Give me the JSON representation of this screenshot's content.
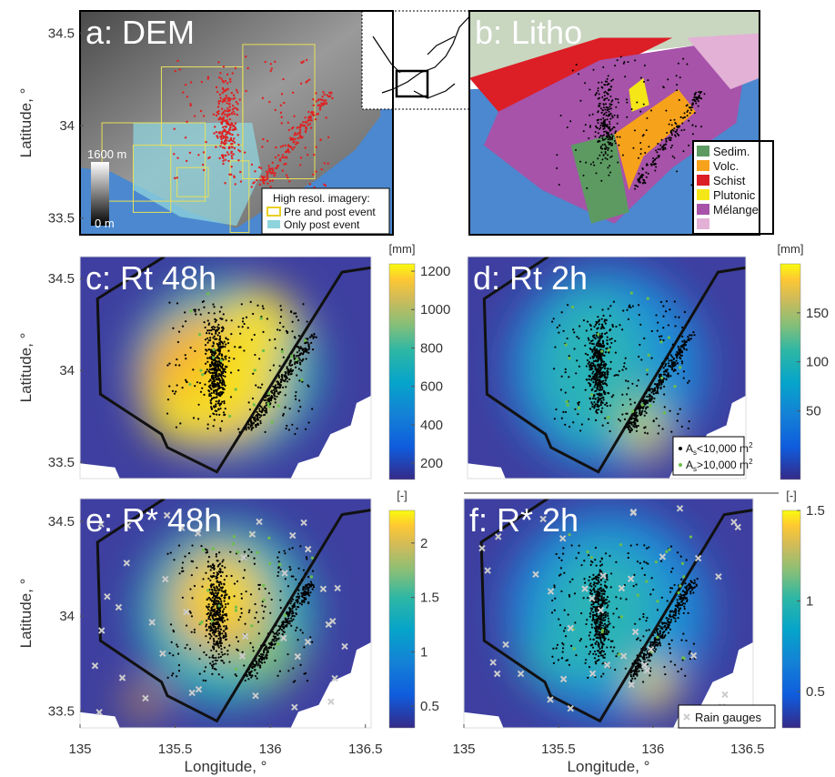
{
  "figure": {
    "y_label": "Latitude, °",
    "x_label": "Longitude, °",
    "yticks": [
      33.5,
      34,
      34.5
    ],
    "ylim": [
      33.41,
      34.62
    ],
    "xticks": [
      135,
      135.5,
      136,
      136.5
    ],
    "xlim": [
      135,
      136.53
    ]
  },
  "panels": [
    {
      "label": "a: DEM",
      "colorbar": {
        "top": "1600 m",
        "bottom": "0 m"
      },
      "legend": {
        "title": "High resol. imagery:",
        "items": [
          "Pre and post event",
          "Only post event"
        ]
      }
    },
    {
      "label": "b: Litho",
      "legend": {
        "items": [
          "Sedim.",
          "Volc.",
          "Schist",
          "Plutonic",
          "Mélange"
        ]
      }
    },
    {
      "label": "c: Rt 48h",
      "colorbar": {
        "unit": "[mm]",
        "lim": [
          115,
          1238
        ],
        "ticks": [
          200,
          400,
          600,
          800,
          1000,
          1200
        ]
      }
    },
    {
      "label": "d: Rt 2h",
      "colorbar": {
        "unit": "[mm]",
        "lim": [
          -20,
          200
        ],
        "ticks": [
          50,
          100,
          150
        ]
      },
      "legend": {
        "items": [
          {
            "main": "A",
            "sub": "s",
            "rest": "<10,000 m",
            "sup": "2"
          },
          {
            "main": "A",
            "sub": "s",
            "rest": ">10,000 m",
            "sup": "2"
          }
        ]
      }
    },
    {
      "label": "e: R* 48h",
      "colorbar": {
        "unit": "[-]",
        "lim": [
          0.3,
          2.3
        ],
        "ticks": [
          0.5,
          1,
          1.5,
          2
        ]
      }
    },
    {
      "label": "f: R* 2h",
      "colorbar": {
        "unit": "[-]",
        "lim": [
          0.3,
          1.5
        ],
        "ticks": [
          0.5,
          1,
          1.5
        ]
      },
      "legend": {
        "items": [
          "Rain gauges"
        ]
      }
    }
  ]
}
